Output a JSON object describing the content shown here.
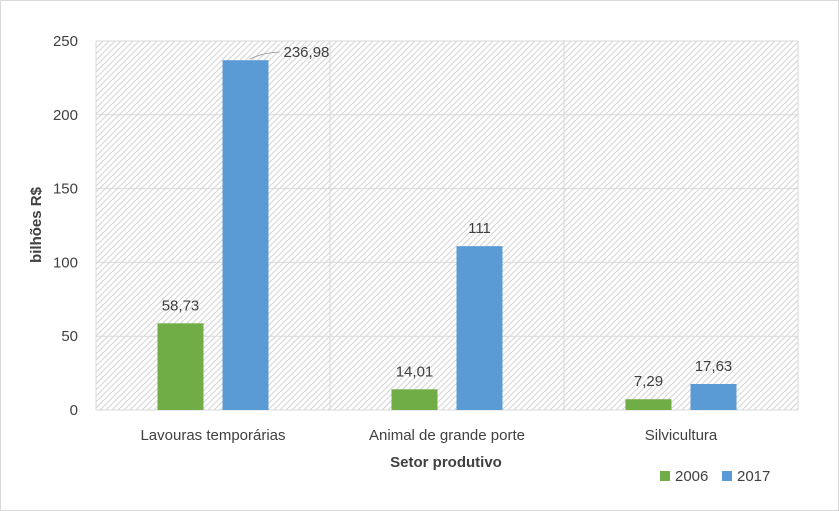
{
  "chart_data": {
    "type": "bar",
    "title": "",
    "xlabel": "Setor produtivo",
    "ylabel": "bilhões R$",
    "ylim": [
      0,
      250
    ],
    "yticks": [
      0,
      50,
      100,
      150,
      200,
      250
    ],
    "grid": true,
    "legend_position": "bottom-right",
    "categories": [
      "Lavouras temporárias",
      "Animal de grande porte",
      "Silvicultura"
    ],
    "series": [
      {
        "name": "2006",
        "color": "#70ad47",
        "values": [
          58.73,
          14.01,
          7.29
        ],
        "labels": [
          "58,73",
          "14,01",
          "7,29"
        ]
      },
      {
        "name": "2017",
        "color": "#5b9bd5",
        "values": [
          236.98,
          111,
          17.63
        ],
        "labels": [
          "236,98",
          "111",
          "17,63"
        ]
      }
    ]
  }
}
